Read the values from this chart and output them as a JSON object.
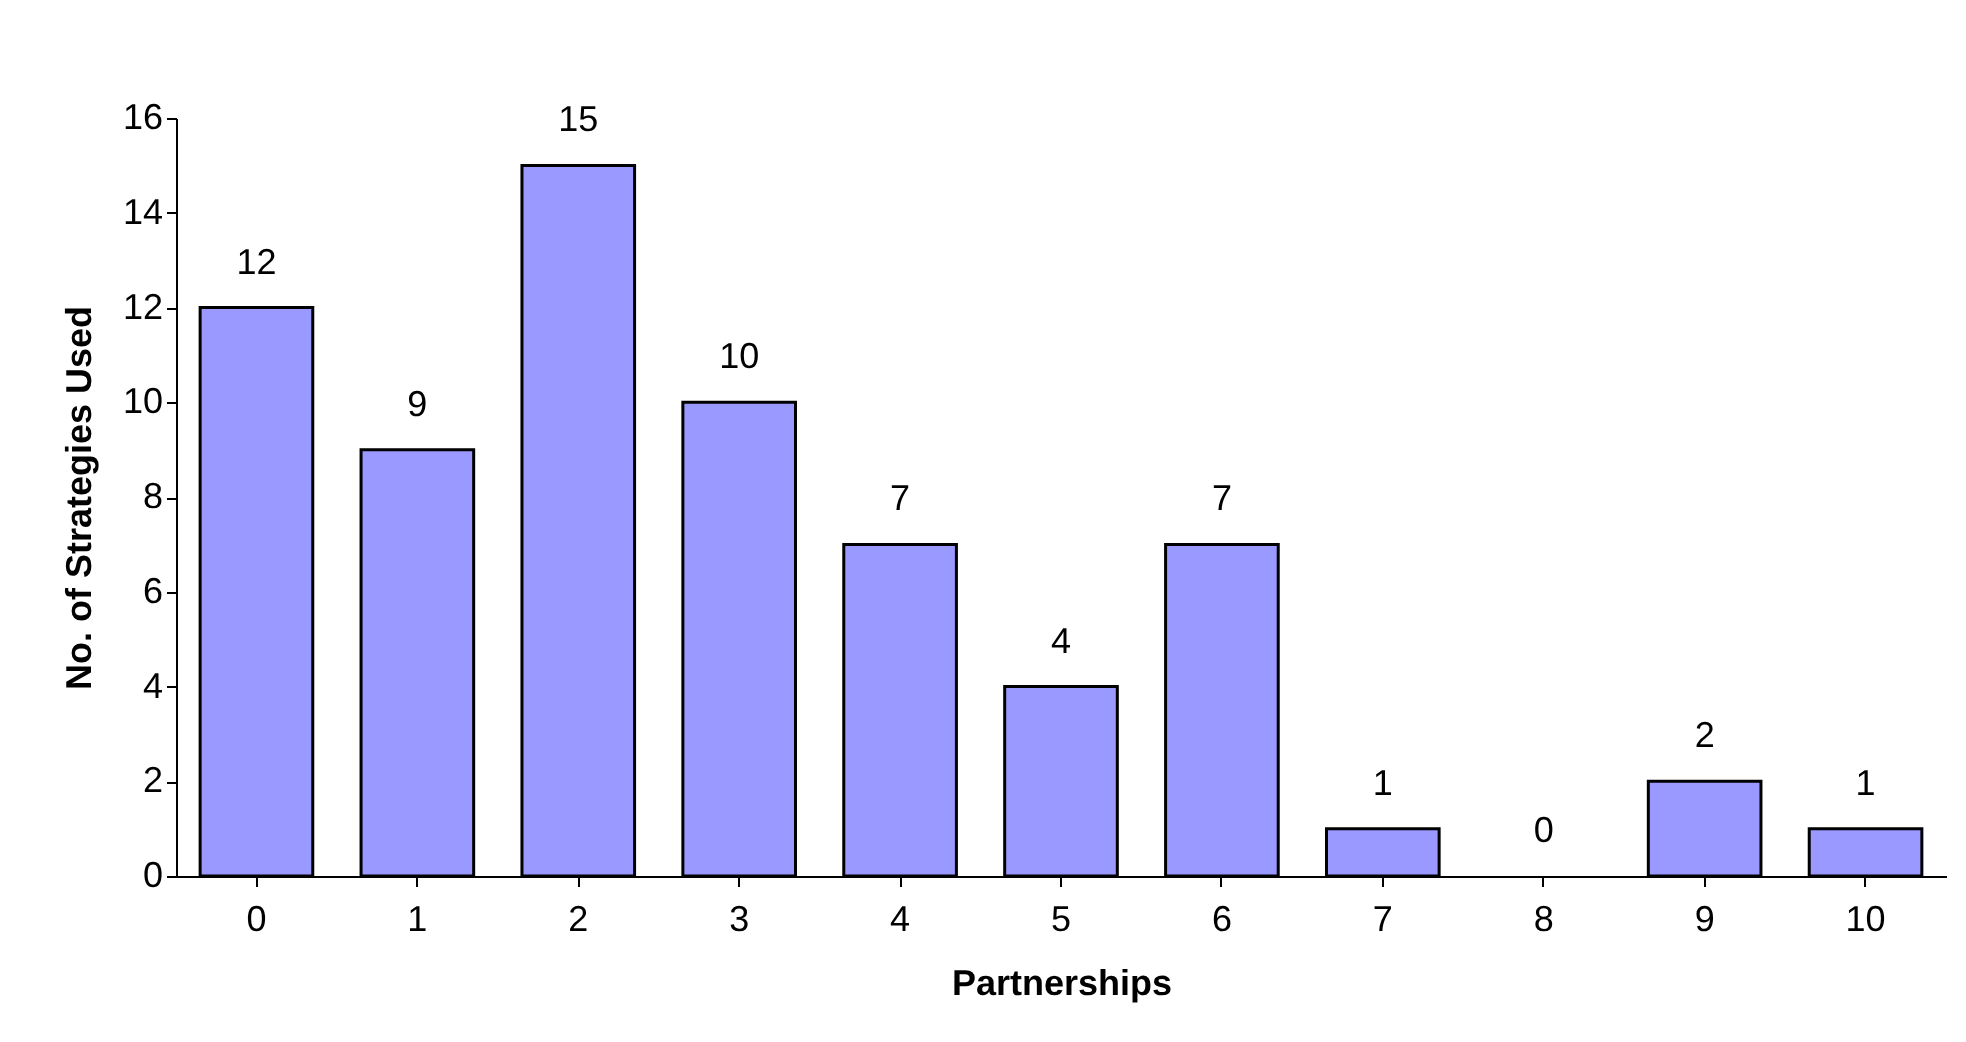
{
  "chart_data": {
    "type": "bar",
    "xlabel": "Partnerships",
    "ylabel": "No. of Strategies Used",
    "categories": [
      "0",
      "1",
      "2",
      "3",
      "4",
      "5",
      "6",
      "7",
      "8",
      "9",
      "10"
    ],
    "values": [
      12,
      9,
      15,
      10,
      7,
      4,
      7,
      1,
      0,
      2,
      1
    ],
    "color": "#9999ff",
    "ylim": [
      0,
      16
    ],
    "yticks": [
      0,
      2,
      4,
      6,
      8,
      10,
      12,
      14,
      16
    ],
    "data_labels": true,
    "grid": false
  }
}
